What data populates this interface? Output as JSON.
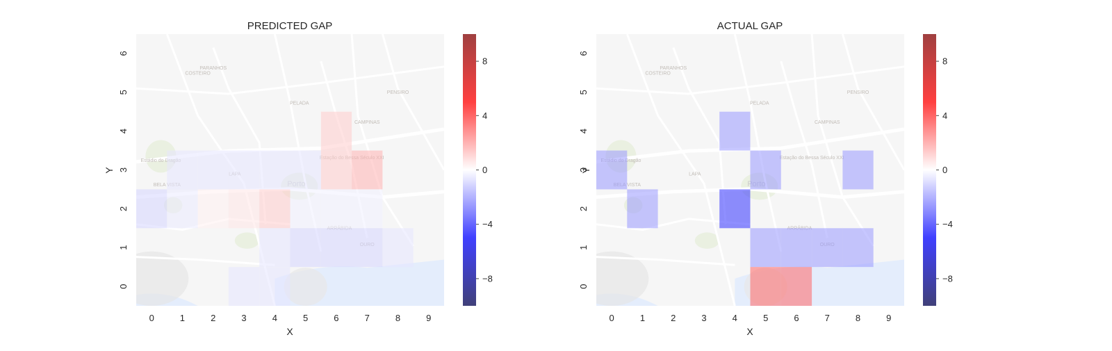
{
  "chart_data": [
    {
      "type": "heatmap",
      "title": "PREDICTED GAP",
      "xlabel": "X",
      "ylabel": "Y",
      "x_categories": [
        "0",
        "1",
        "2",
        "3",
        "4",
        "5",
        "6",
        "7",
        "8",
        "9"
      ],
      "y_categories": [
        "0",
        "1",
        "2",
        "3",
        "4",
        "5",
        "6"
      ],
      "vmin": -10,
      "vmax": 10,
      "colormap": "seismic",
      "grid": false,
      "background": "map",
      "cells": [
        {
          "x": 6,
          "y": 4,
          "value": 1.0
        },
        {
          "x": 6,
          "y": 3,
          "value": 1.0
        },
        {
          "x": 7,
          "y": 3,
          "value": 1.5
        },
        {
          "x": 1,
          "y": 3,
          "value": -0.5
        },
        {
          "x": 2,
          "y": 3,
          "value": -0.5
        },
        {
          "x": 3,
          "y": 3,
          "value": -0.5
        },
        {
          "x": 4,
          "y": 3,
          "value": -0.5
        },
        {
          "x": 5,
          "y": 3,
          "value": -0.5
        },
        {
          "x": 0,
          "y": 2,
          "value": -0.8
        },
        {
          "x": 1,
          "y": 2,
          "value": -0.4
        },
        {
          "x": 2,
          "y": 2,
          "value": 0.3
        },
        {
          "x": 3,
          "y": 2,
          "value": 0.5
        },
        {
          "x": 4,
          "y": 2,
          "value": 1.0
        },
        {
          "x": 5,
          "y": 2,
          "value": -0.3
        },
        {
          "x": 6,
          "y": 2,
          "value": -0.3
        },
        {
          "x": 7,
          "y": 2,
          "value": -0.3
        },
        {
          "x": 4,
          "y": 1,
          "value": -0.5
        },
        {
          "x": 5,
          "y": 1,
          "value": -0.8
        },
        {
          "x": 6,
          "y": 1,
          "value": -0.8
        },
        {
          "x": 7,
          "y": 1,
          "value": -0.8
        },
        {
          "x": 8,
          "y": 1,
          "value": -0.5
        },
        {
          "x": 3,
          "y": 0,
          "value": -0.5
        },
        {
          "x": 4,
          "y": 0,
          "value": -0.5
        }
      ]
    },
    {
      "type": "heatmap",
      "title": "ACTUAL GAP",
      "xlabel": "X",
      "ylabel": "Y",
      "x_categories": [
        "0",
        "1",
        "2",
        "3",
        "4",
        "5",
        "6",
        "7",
        "8",
        "9"
      ],
      "y_categories": [
        "0",
        "1",
        "2",
        "3",
        "4",
        "5",
        "6"
      ],
      "vmin": -10,
      "vmax": 10,
      "colormap": "seismic",
      "grid": false,
      "background": "map",
      "cells": [
        {
          "x": 4,
          "y": 4,
          "value": -2.0
        },
        {
          "x": 0,
          "y": 3,
          "value": -2.0
        },
        {
          "x": 5,
          "y": 3,
          "value": -2.0
        },
        {
          "x": 8,
          "y": 3,
          "value": -2.0
        },
        {
          "x": 1,
          "y": 2,
          "value": -2.0
        },
        {
          "x": 4,
          "y": 2,
          "value": -4.0
        },
        {
          "x": 5,
          "y": 1,
          "value": -2.0
        },
        {
          "x": 6,
          "y": 1,
          "value": -2.0
        },
        {
          "x": 7,
          "y": 1,
          "value": -2.0
        },
        {
          "x": 8,
          "y": 1,
          "value": -2.0
        },
        {
          "x": 5,
          "y": 0,
          "value": 3.0
        },
        {
          "x": 6,
          "y": 0,
          "value": 3.0
        }
      ]
    }
  ],
  "colorbar": {
    "ticks": [
      "8",
      "4",
      "0",
      "−4",
      "−8"
    ],
    "tick_values": [
      8,
      4,
      0,
      -4,
      -8
    ]
  },
  "map_labels": [
    "Porto",
    "PELADA",
    "CAMPINAS",
    "PENSIRO",
    "PARANHOS",
    "ARRÁBIDA",
    "OURO",
    "LAPA",
    "BELA VISTA",
    "COSTEIRO",
    "Estação do Bessa Século XXI",
    "Estádio do Dragão"
  ],
  "colors": {
    "map_land": "#f2f2f2",
    "map_water": "#d6e4fb",
    "map_road": "#ffffff",
    "map_park": "#dfe8d2"
  }
}
